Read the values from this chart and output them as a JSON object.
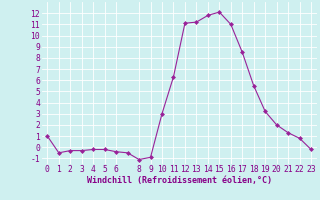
{
  "x": [
    0,
    1,
    2,
    3,
    4,
    5,
    6,
    7,
    8,
    9,
    10,
    11,
    12,
    13,
    14,
    15,
    16,
    17,
    18,
    19,
    20,
    21,
    22,
    23
  ],
  "y": [
    1.0,
    -0.5,
    -0.3,
    -0.3,
    -0.2,
    -0.2,
    -0.4,
    -0.5,
    -1.1,
    -0.9,
    3.0,
    6.3,
    11.1,
    11.2,
    11.8,
    12.1,
    11.0,
    8.5,
    5.5,
    3.2,
    2.0,
    1.3,
    0.8,
    -0.2
  ],
  "line_color": "#992299",
  "marker": "D",
  "marker_size": 2.0,
  "line_width": 0.8,
  "xlabel": "Windchill (Refroidissement éolien,°C)",
  "ylim": [
    -1.5,
    13.0
  ],
  "xlim": [
    -0.5,
    23.5
  ],
  "yticks": [
    -1,
    0,
    1,
    2,
    3,
    4,
    5,
    6,
    7,
    8,
    9,
    10,
    11,
    12
  ],
  "xticks": [
    0,
    1,
    2,
    3,
    4,
    5,
    6,
    8,
    9,
    10,
    11,
    12,
    13,
    14,
    15,
    16,
    17,
    18,
    19,
    20,
    21,
    22,
    23
  ],
  "bg_color": "#cff0f0",
  "grid_color": "#ffffff",
  "tick_label_color": "#880088",
  "xlabel_color": "#880088",
  "xlabel_fontsize": 6.0,
  "tick_fontsize": 5.8
}
